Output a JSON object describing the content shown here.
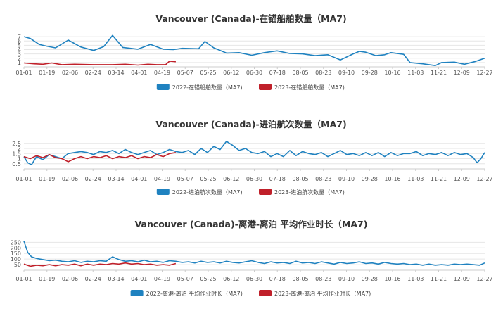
{
  "x_ticks": [
    "01-01",
    "01-19",
    "02-06",
    "02-24",
    "03-14",
    "04-01",
    "04-19",
    "05-07",
    "05-25",
    "06-12",
    "06-30",
    "07-18",
    "08-05",
    "08-23",
    "09-10",
    "09-28",
    "10-16",
    "11-03",
    "11-21",
    "12-09",
    "12-27"
  ],
  "colors": {
    "series2022": "#1f82c0",
    "series2023": "#c0202a"
  },
  "chart_data": [
    {
      "type": "line",
      "title": "Vancouver (Canada)-在锚船舶数量（MA7)",
      "ylim": [
        0,
        8
      ],
      "yticks": [
        "1",
        "2",
        "3",
        "4",
        "5",
        "6",
        "7"
      ],
      "series": [
        {
          "name": "2022-在锚船舶数量（MA7)",
          "key": "series2022",
          "points": [
            [
              0,
              7.0
            ],
            [
              5,
              6.6
            ],
            [
              12,
              5.2
            ],
            [
              18,
              4.8
            ],
            [
              25,
              4.4
            ],
            [
              35,
              6.2
            ],
            [
              45,
              4.6
            ],
            [
              55,
              3.8
            ],
            [
              63,
              4.7
            ],
            [
              70,
              7.3
            ],
            [
              78,
              4.5
            ],
            [
              90,
              4.1
            ],
            [
              100,
              5.2
            ],
            [
              110,
              4.1
            ],
            [
              118,
              4.0
            ],
            [
              125,
              4.3
            ],
            [
              138,
              4.2
            ],
            [
              143,
              5.9
            ],
            [
              150,
              4.4
            ],
            [
              160,
              3.2
            ],
            [
              170,
              3.3
            ],
            [
              180,
              2.7
            ],
            [
              190,
              3.3
            ],
            [
              200,
              3.7
            ],
            [
              210,
              3.1
            ],
            [
              220,
              3.0
            ],
            [
              230,
              2.6
            ],
            [
              240,
              2.8
            ],
            [
              250,
              1.6
            ],
            [
              260,
              3.0
            ],
            [
              265,
              3.6
            ],
            [
              270,
              3.4
            ],
            [
              278,
              2.6
            ],
            [
              285,
              2.8
            ],
            [
              290,
              3.3
            ],
            [
              300,
              2.9
            ],
            [
              305,
              1.0
            ],
            [
              315,
              0.7
            ],
            [
              325,
              0.3
            ],
            [
              330,
              1.0
            ],
            [
              340,
              1.1
            ],
            [
              348,
              0.6
            ],
            [
              356,
              1.2
            ],
            [
              364,
              2.0
            ]
          ]
        },
        {
          "name": "2023-在锚船舶数量（MA7)",
          "key": "series2023",
          "points": [
            [
              0,
              0.9
            ],
            [
              8,
              0.7
            ],
            [
              15,
              0.6
            ],
            [
              22,
              0.9
            ],
            [
              30,
              0.5
            ],
            [
              40,
              0.6
            ],
            [
              55,
              0.5
            ],
            [
              70,
              0.5
            ],
            [
              80,
              0.6
            ],
            [
              90,
              0.4
            ],
            [
              98,
              0.6
            ],
            [
              105,
              0.5
            ],
            [
              112,
              0.5
            ],
            [
              115,
              1.3
            ],
            [
              120,
              1.2
            ]
          ]
        }
      ]
    },
    {
      "type": "line",
      "title": "Vancouver (Canada)-进泊航次数量（MA7)",
      "ylim": [
        0,
        2.9
      ],
      "yticks": [
        "0.5",
        "1",
        "1.5",
        "2",
        "2.5"
      ],
      "series": [
        {
          "name": "2022-进泊航次数量（MA7)",
          "key": "series2022",
          "points": [
            [
              0,
              1.2
            ],
            [
              3,
              0.6
            ],
            [
              6,
              0.4
            ],
            [
              10,
              1.2
            ],
            [
              15,
              0.9
            ],
            [
              20,
              1.4
            ],
            [
              25,
              1.2
            ],
            [
              30,
              1.0
            ],
            [
              35,
              1.5
            ],
            [
              40,
              1.6
            ],
            [
              45,
              1.7
            ],
            [
              50,
              1.6
            ],
            [
              55,
              1.4
            ],
            [
              60,
              1.7
            ],
            [
              65,
              1.6
            ],
            [
              70,
              1.8
            ],
            [
              75,
              1.5
            ],
            [
              80,
              1.9
            ],
            [
              85,
              1.6
            ],
            [
              90,
              1.4
            ],
            [
              95,
              1.6
            ],
            [
              100,
              1.8
            ],
            [
              105,
              1.4
            ],
            [
              110,
              1.6
            ],
            [
              115,
              1.9
            ],
            [
              120,
              1.7
            ],
            [
              125,
              1.6
            ],
            [
              130,
              1.8
            ],
            [
              135,
              1.4
            ],
            [
              140,
              2.0
            ],
            [
              145,
              1.6
            ],
            [
              150,
              2.2
            ],
            [
              155,
              1.9
            ],
            [
              160,
              2.7
            ],
            [
              165,
              2.3
            ],
            [
              170,
              1.8
            ],
            [
              175,
              2.0
            ],
            [
              180,
              1.6
            ],
            [
              185,
              1.5
            ],
            [
              190,
              1.7
            ],
            [
              195,
              1.2
            ],
            [
              200,
              1.5
            ],
            [
              205,
              1.2
            ],
            [
              210,
              1.8
            ],
            [
              215,
              1.3
            ],
            [
              220,
              1.7
            ],
            [
              225,
              1.5
            ],
            [
              230,
              1.4
            ],
            [
              235,
              1.6
            ],
            [
              240,
              1.2
            ],
            [
              245,
              1.5
            ],
            [
              250,
              1.8
            ],
            [
              255,
              1.4
            ],
            [
              260,
              1.5
            ],
            [
              265,
              1.3
            ],
            [
              270,
              1.6
            ],
            [
              275,
              1.3
            ],
            [
              280,
              1.6
            ],
            [
              285,
              1.2
            ],
            [
              290,
              1.6
            ],
            [
              295,
              1.3
            ],
            [
              300,
              1.5
            ],
            [
              305,
              1.5
            ],
            [
              310,
              1.7
            ],
            [
              315,
              1.3
            ],
            [
              320,
              1.5
            ],
            [
              325,
              1.4
            ],
            [
              330,
              1.6
            ],
            [
              335,
              1.3
            ],
            [
              340,
              1.6
            ],
            [
              345,
              1.4
            ],
            [
              350,
              1.5
            ],
            [
              355,
              1.1
            ],
            [
              358,
              0.6
            ],
            [
              361,
              1.0
            ],
            [
              364,
              1.6
            ]
          ]
        },
        {
          "name": "2023-进泊航次数量（MA7)",
          "key": "series2023",
          "points": [
            [
              0,
              1.2
            ],
            [
              5,
              1.0
            ],
            [
              10,
              1.3
            ],
            [
              15,
              1.1
            ],
            [
              20,
              1.4
            ],
            [
              25,
              1.1
            ],
            [
              30,
              1.0
            ],
            [
              35,
              0.7
            ],
            [
              40,
              1.0
            ],
            [
              45,
              1.2
            ],
            [
              50,
              1.0
            ],
            [
              55,
              1.2
            ],
            [
              60,
              1.1
            ],
            [
              65,
              1.3
            ],
            [
              70,
              1.0
            ],
            [
              75,
              1.2
            ],
            [
              80,
              1.1
            ],
            [
              85,
              1.3
            ],
            [
              90,
              1.0
            ],
            [
              95,
              1.2
            ],
            [
              100,
              1.1
            ],
            [
              105,
              1.4
            ],
            [
              110,
              1.2
            ],
            [
              115,
              1.5
            ],
            [
              120,
              1.6
            ]
          ]
        }
      ]
    },
    {
      "type": "line",
      "title": "Vancouver (Canada)-离港-离泊 平均作业时长（MA7)",
      "ylim": [
        0,
        290
      ],
      "yticks": [
        "50",
        "100",
        "150",
        "200",
        "250"
      ],
      "series": [
        {
          "name": "2022-离港-离泊 平均作业时长（MA7)",
          "key": "series2022",
          "points": [
            [
              0,
              260
            ],
            [
              3,
              160
            ],
            [
              6,
              120
            ],
            [
              10,
              105
            ],
            [
              15,
              95
            ],
            [
              20,
              85
            ],
            [
              25,
              90
            ],
            [
              30,
              80
            ],
            [
              35,
              75
            ],
            [
              40,
              85
            ],
            [
              45,
              70
            ],
            [
              50,
              80
            ],
            [
              55,
              75
            ],
            [
              60,
              85
            ],
            [
              65,
              80
            ],
            [
              70,
              120
            ],
            [
              75,
              95
            ],
            [
              80,
              80
            ],
            [
              85,
              85
            ],
            [
              90,
              75
            ],
            [
              95,
              90
            ],
            [
              100,
              75
            ],
            [
              105,
              80
            ],
            [
              110,
              70
            ],
            [
              115,
              85
            ],
            [
              120,
              80
            ],
            [
              125,
              70
            ],
            [
              130,
              75
            ],
            [
              135,
              65
            ],
            [
              140,
              80
            ],
            [
              145,
              70
            ],
            [
              150,
              75
            ],
            [
              155,
              65
            ],
            [
              160,
              80
            ],
            [
              165,
              70
            ],
            [
              170,
              65
            ],
            [
              175,
              75
            ],
            [
              180,
              85
            ],
            [
              185,
              70
            ],
            [
              190,
              60
            ],
            [
              195,
              75
            ],
            [
              200,
              65
            ],
            [
              205,
              70
            ],
            [
              210,
              60
            ],
            [
              215,
              80
            ],
            [
              220,
              65
            ],
            [
              225,
              70
            ],
            [
              230,
              60
            ],
            [
              235,
              75
            ],
            [
              240,
              65
            ],
            [
              245,
              55
            ],
            [
              250,
              70
            ],
            [
              255,
              60
            ],
            [
              260,
              65
            ],
            [
              265,
              75
            ],
            [
              270,
              60
            ],
            [
              275,
              65
            ],
            [
              280,
              55
            ],
            [
              285,
              70
            ],
            [
              290,
              60
            ],
            [
              295,
              55
            ],
            [
              300,
              60
            ],
            [
              305,
              50
            ],
            [
              310,
              55
            ],
            [
              315,
              45
            ],
            [
              320,
              55
            ],
            [
              325,
              45
            ],
            [
              330,
              50
            ],
            [
              335,
              45
            ],
            [
              340,
              55
            ],
            [
              345,
              50
            ],
            [
              350,
              55
            ],
            [
              355,
              50
            ],
            [
              360,
              45
            ],
            [
              364,
              65
            ]
          ]
        },
        {
          "name": "2023-离港-离泊 平均作业时长（MA7)",
          "key": "series2023",
          "points": [
            [
              0,
              55
            ],
            [
              5,
              35
            ],
            [
              10,
              45
            ],
            [
              15,
              40
            ],
            [
              20,
              50
            ],
            [
              25,
              40
            ],
            [
              30,
              50
            ],
            [
              35,
              45
            ],
            [
              40,
              55
            ],
            [
              45,
              40
            ],
            [
              50,
              55
            ],
            [
              55,
              45
            ],
            [
              60,
              55
            ],
            [
              65,
              50
            ],
            [
              70,
              60
            ],
            [
              75,
              55
            ],
            [
              80,
              65
            ],
            [
              85,
              55
            ],
            [
              90,
              60
            ],
            [
              95,
              50
            ],
            [
              100,
              55
            ],
            [
              105,
              45
            ],
            [
              110,
              50
            ],
            [
              115,
              45
            ],
            [
              120,
              60
            ]
          ]
        }
      ]
    }
  ]
}
